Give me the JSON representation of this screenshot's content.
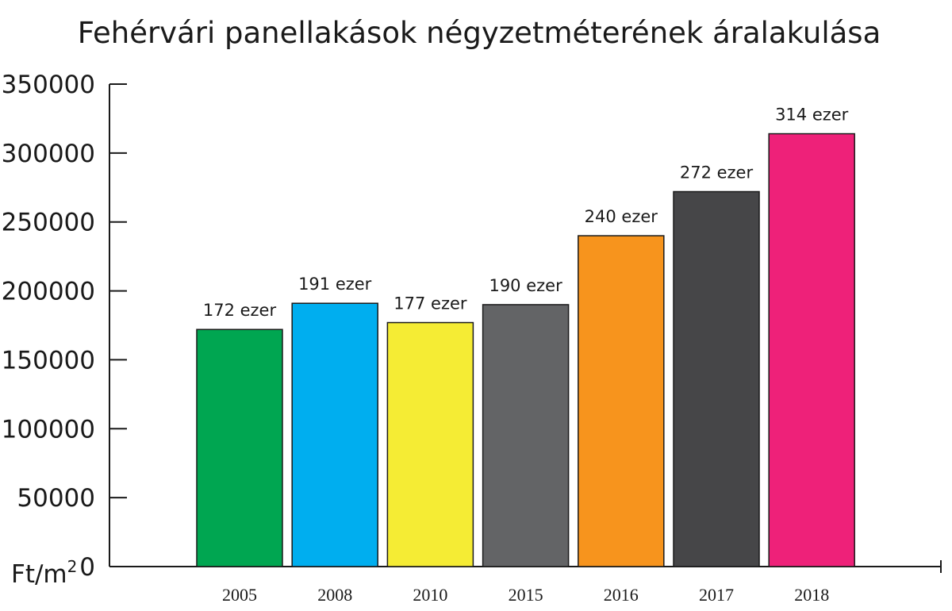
{
  "chart_data": {
    "type": "bar",
    "title": "Fehérvári panellakások négyzetméterének áralakulása",
    "ylabel": "Ft/m",
    "ylabel_superscript": "2",
    "categories": [
      "2005",
      "2008",
      "2010",
      "2015",
      "2016",
      "2017",
      "2018"
    ],
    "values": [
      172000,
      191000,
      177000,
      190000,
      240000,
      272000,
      314000
    ],
    "data_labels": [
      "172 ezer",
      "191 ezer",
      "177 ezer",
      "190 ezer",
      "240 ezer",
      "272 ezer",
      "314 ezer"
    ],
    "bar_colors": [
      "#00a651",
      "#00aeef",
      "#f5ec34",
      "#636466",
      "#f7941d",
      "#464648",
      "#ee2179"
    ],
    "ylim": [
      0,
      350000
    ],
    "yticks": [
      "0",
      "50000",
      "100000",
      "150000",
      "200000",
      "250000",
      "300000",
      "350000"
    ],
    "grid": false,
    "legend": "none"
  }
}
